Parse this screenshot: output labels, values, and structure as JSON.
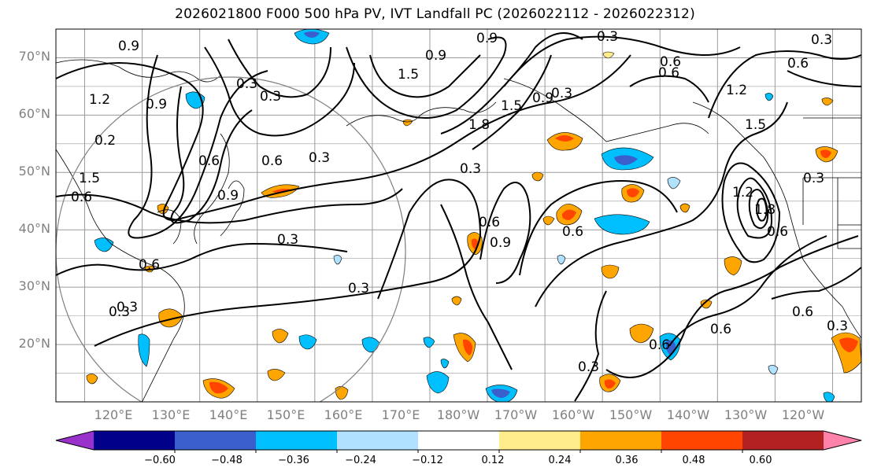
{
  "title": "2026021800 F000 500 hPa PV, IVT Landfall PC (2026022112 - 2026022312)",
  "map": {
    "lat_labels": [
      "70°N",
      "60°N",
      "50°N",
      "40°N",
      "30°N",
      "20°N"
    ],
    "lat_values": [
      70,
      60,
      50,
      40,
      30,
      20
    ],
    "lon_labels": [
      "120°E",
      "130°E",
      "140°E",
      "150°E",
      "160°E",
      "170°E",
      "180°W",
      "170°W",
      "160°W",
      "150°W",
      "140°W",
      "130°W",
      "120°W"
    ],
    "extent": {
      "lon_min": 115,
      "lon_max": 255,
      "lat_min": 10,
      "lat_max": 75
    },
    "pv_contour_labels": [
      "0.9",
      "0.3",
      "0.6",
      "0.3",
      "0.9",
      "1.5",
      "1.8",
      "1.5",
      "0.3",
      "0.6",
      "0.9",
      "0.6",
      "0.3",
      "0.3",
      "0.6",
      "0.9",
      "0.6",
      "0.3",
      "0.3",
      "0.6",
      "0.6",
      "1.2",
      "1.5",
      "0.6",
      "1.2",
      "1.8",
      "0.3",
      "0.6",
      "0.3",
      "0.9",
      "0.3",
      "1.2",
      "0.9",
      "0.6",
      "0.3",
      "0.6",
      "1.5",
      "0.3",
      "0.6",
      "0.3",
      "0.9",
      "0.2",
      "0.6",
      "0.3"
    ]
  },
  "colorbar": {
    "tick_labels": [
      "−0.60",
      "−0.48",
      "−0.36",
      "−0.24",
      "−0.12",
      "0.12",
      "0.24",
      "0.36",
      "0.48",
      "0.60"
    ],
    "colors": [
      "#9932cc",
      "#00008b",
      "#3a5fcd",
      "#00bfff",
      "#b0e2ff",
      "#ffffff",
      "#ffec8b",
      "#ffa500",
      "#ff4500",
      "#b22222",
      "#ff82ab"
    ]
  }
}
